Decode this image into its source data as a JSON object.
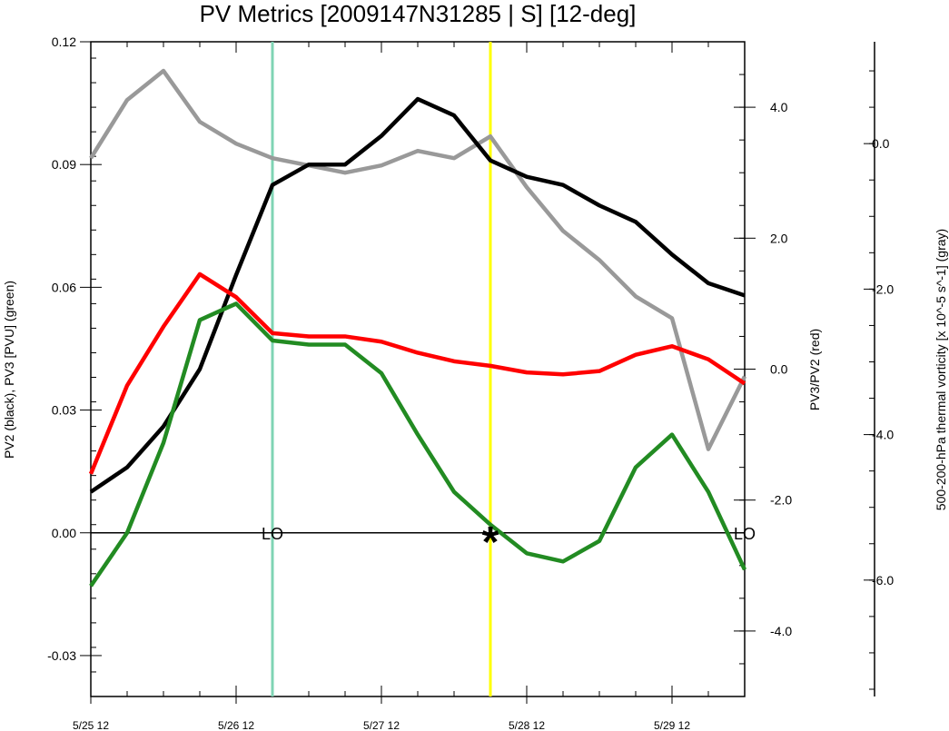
{
  "chart_data": {
    "type": "line",
    "title": "PV Metrics [2009147N31285 | S] [12-deg]",
    "ylabel_left": "PV2 (black), PV3 [PVU] (green)",
    "ylabel_right1": "PV3/PV2 (red)",
    "ylabel_right2": "500-200-hPa thermal vorticity [x 10^-5 s^-1] (gray)",
    "x_tick_labels": [
      "5/25 12",
      "5/26 12",
      "5/27 12",
      "5/28 12",
      "5/29 12"
    ],
    "x_tick_hours": [
      0,
      24,
      48,
      72,
      96
    ],
    "x_hours": [
      0,
      6,
      12,
      18,
      24,
      30,
      36,
      42,
      48,
      54,
      60,
      66,
      72,
      78,
      84,
      90,
      96,
      102,
      108
    ],
    "xlim": [
      0,
      108
    ],
    "left_axis": {
      "ylim": [
        -0.04,
        0.12
      ],
      "ticks": [
        "-0.03",
        "0.00",
        "0.03",
        "0.06",
        "0.09",
        "0.12"
      ],
      "tick_values": [
        -0.03,
        0.0,
        0.03,
        0.06,
        0.09,
        0.12
      ]
    },
    "right_axis_1": {
      "ylim": [
        -5.0,
        5.0
      ],
      "ticks": [
        "-4.0",
        "-2.0",
        "0.0",
        "2.0",
        "4.0"
      ],
      "tick_values": [
        -4.0,
        -2.0,
        0.0,
        2.0,
        4.0
      ]
    },
    "right_axis_2": {
      "ylim": [
        -7.6,
        1.4
      ],
      "ticks": [
        "-6.0",
        "-4.0",
        "-2.0",
        "0.0"
      ],
      "tick_values": [
        -6.0,
        -4.0,
        -2.0,
        0.0
      ]
    },
    "series": [
      {
        "color": "#000000",
        "axis": "left",
        "values": [
          0.01,
          0.016,
          0.026,
          0.04,
          0.063,
          0.085,
          0.09,
          0.09,
          0.097,
          0.106,
          0.102,
          0.091,
          0.087,
          0.085,
          0.08,
          0.076,
          0.068,
          0.061,
          0.058
        ]
      },
      {
        "color": "#228b22",
        "axis": "left",
        "values": [
          -0.013,
          0.0,
          0.022,
          0.052,
          0.056,
          0.047,
          0.046,
          0.046,
          0.039,
          0.024,
          0.01,
          0.002,
          -0.005,
          -0.007,
          -0.002,
          0.016,
          0.024,
          0.01,
          -0.009
        ]
      },
      {
        "color": "#ff0000",
        "axis": "right_1",
        "values": [
          -1.6,
          -0.25,
          0.65,
          1.45,
          1.1,
          0.55,
          0.5,
          0.5,
          0.42,
          0.25,
          0.12,
          0.05,
          -0.05,
          -0.08,
          -0.03,
          0.22,
          0.35,
          0.15,
          -0.22
        ]
      },
      {
        "color": "#999999",
        "axis": "right_2",
        "values": [
          -0.2,
          0.6,
          1.0,
          0.3,
          0.0,
          -0.2,
          -0.3,
          -0.4,
          -0.3,
          -0.1,
          -0.2,
          0.1,
          -0.6,
          -1.2,
          -1.6,
          -2.1,
          -2.4,
          -4.2,
          -3.2
        ]
      }
    ],
    "vertical_lines": [
      {
        "hour": 30,
        "color": "#7fd4b4"
      },
      {
        "hour": 66,
        "color": "#ffff00"
      }
    ],
    "zero_line_labels": [
      {
        "hour": 30,
        "text": "LO"
      },
      {
        "hour": 108,
        "text": "LO"
      }
    ],
    "star_marker": {
      "hour": 66,
      "text": "*"
    },
    "grid": false
  }
}
